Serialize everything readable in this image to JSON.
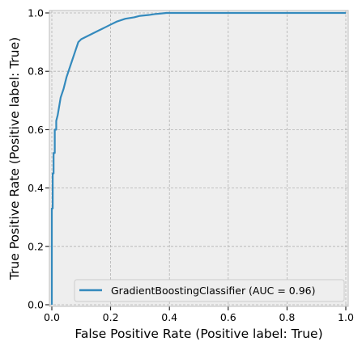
{
  "chart_data": {
    "type": "line",
    "title": "",
    "xlabel": "False Positive Rate (Positive label: True)",
    "ylabel": "True Positive Rate (Positive label: True)",
    "xlim": [
      0,
      1
    ],
    "ylim": [
      0,
      1
    ],
    "xticks": [
      "0.0",
      "0.2",
      "0.4",
      "0.6",
      "0.8",
      "1.0"
    ],
    "yticks": [
      "0.0",
      "0.2",
      "0.4",
      "0.6",
      "0.8",
      "1.0"
    ],
    "grid": true,
    "legend_position": "lower-right",
    "series": [
      {
        "name": "GradientBoostingClassifier (AUC = 0.96)",
        "color": "#348abd",
        "x": [
          0.0,
          0.0,
          0.003,
          0.003,
          0.006,
          0.006,
          0.01,
          0.01,
          0.015,
          0.015,
          0.02,
          0.025,
          0.03,
          0.04,
          0.05,
          0.06,
          0.07,
          0.08,
          0.09,
          0.1,
          0.12,
          0.14,
          0.16,
          0.18,
          0.2,
          0.22,
          0.25,
          0.28,
          0.3,
          0.33,
          0.35,
          0.37,
          0.39,
          1.0
        ],
        "y": [
          0.0,
          0.33,
          0.33,
          0.45,
          0.45,
          0.52,
          0.52,
          0.6,
          0.6,
          0.63,
          0.65,
          0.68,
          0.71,
          0.74,
          0.78,
          0.81,
          0.84,
          0.87,
          0.9,
          0.91,
          0.92,
          0.93,
          0.94,
          0.95,
          0.96,
          0.97,
          0.98,
          0.985,
          0.99,
          0.993,
          0.996,
          0.998,
          1.0,
          1.0
        ]
      }
    ]
  }
}
